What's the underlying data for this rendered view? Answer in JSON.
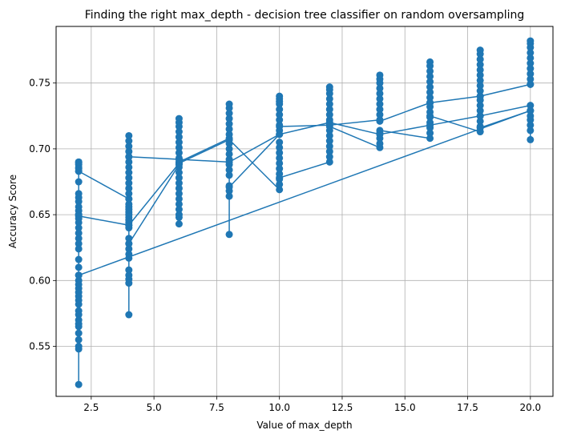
{
  "chart_data": {
    "type": "line",
    "title": "Finding the right max_depth - decision tree classifier on random oversampling",
    "xlabel": "Value of max_depth",
    "ylabel": "Accuracy Score",
    "xlim": [
      1.1,
      20.9
    ],
    "ylim": [
      0.512,
      0.793
    ],
    "xticks": [
      2.5,
      5.0,
      7.5,
      10.0,
      12.5,
      15.0,
      17.5,
      20.0
    ],
    "xtick_labels": [
      "2.5",
      "5.0",
      "7.5",
      "10.0",
      "12.5",
      "15.0",
      "17.5",
      "20.0"
    ],
    "yticks": [
      0.55,
      0.6,
      0.65,
      0.7,
      0.75
    ],
    "ytick_labels": [
      "0.55",
      "0.60",
      "0.65",
      "0.70",
      "0.75"
    ],
    "grid": true,
    "line_color": "#1f77b4",
    "series": [
      {
        "values": [
          {
            "x": 2,
            "y": 0.69
          },
          {
            "x": 2,
            "y": 0.689
          },
          {
            "x": 2,
            "y": 0.688
          },
          {
            "x": 2,
            "y": 0.686
          },
          {
            "x": 2,
            "y": 0.685
          },
          {
            "x": 2,
            "y": 0.683
          },
          {
            "x": 2,
            "y": 0.675
          },
          {
            "x": 2,
            "y": 0.666
          },
          {
            "x": 2,
            "y": 0.663
          },
          {
            "x": 2,
            "y": 0.66
          },
          {
            "x": 2,
            "y": 0.656
          },
          {
            "x": 2,
            "y": 0.653
          },
          {
            "x": 2,
            "y": 0.65
          },
          {
            "x": 2,
            "y": 0.647
          },
          {
            "x": 2,
            "y": 0.644
          },
          {
            "x": 2,
            "y": 0.64
          },
          {
            "x": 2,
            "y": 0.636
          },
          {
            "x": 2,
            "y": 0.632
          },
          {
            "x": 2,
            "y": 0.628
          },
          {
            "x": 2,
            "y": 0.624
          },
          {
            "x": 2,
            "y": 0.616
          },
          {
            "x": 2,
            "y": 0.61
          },
          {
            "x": 2,
            "y": 0.604
          },
          {
            "x": 2,
            "y": 0.6
          },
          {
            "x": 2,
            "y": 0.597
          },
          {
            "x": 2,
            "y": 0.594
          },
          {
            "x": 2,
            "y": 0.591
          },
          {
            "x": 2,
            "y": 0.588
          },
          {
            "x": 2,
            "y": 0.585
          },
          {
            "x": 2,
            "y": 0.582
          },
          {
            "x": 2,
            "y": 0.577
          },
          {
            "x": 2,
            "y": 0.574
          },
          {
            "x": 2,
            "y": 0.57
          },
          {
            "x": 2,
            "y": 0.567
          },
          {
            "x": 2,
            "y": 0.565
          },
          {
            "x": 2,
            "y": 0.56
          },
          {
            "x": 2,
            "y": 0.555
          },
          {
            "x": 2,
            "y": 0.55
          },
          {
            "x": 2,
            "y": 0.548
          },
          {
            "x": 2,
            "y": 0.521
          },
          {
            "x": 2,
            "y": 0.604
          },
          {
            "x": 20,
            "y": 0.729
          },
          {
            "x": 20,
            "y": 0.725
          },
          {
            "x": 20,
            "y": 0.722
          },
          {
            "x": 20,
            "y": 0.718
          },
          {
            "x": 20,
            "y": 0.714
          },
          {
            "x": 20,
            "y": 0.707
          },
          {
            "x": 20,
            "y": 0.729
          }
        ]
      },
      {
        "values": [
          {
            "x": 2,
            "y": 0.69
          },
          {
            "x": 2,
            "y": 0.683
          },
          {
            "x": 4,
            "y": 0.662
          },
          {
            "x": 4,
            "y": 0.656
          },
          {
            "x": 4,
            "y": 0.652
          },
          {
            "x": 4,
            "y": 0.648
          },
          {
            "x": 4,
            "y": 0.644
          },
          {
            "x": 4,
            "y": 0.64
          },
          {
            "x": 4,
            "y": 0.632
          },
          {
            "x": 4,
            "y": 0.628
          },
          {
            "x": 4,
            "y": 0.624
          },
          {
            "x": 4,
            "y": 0.62
          },
          {
            "x": 4,
            "y": 0.617
          },
          {
            "x": 4,
            "y": 0.608
          },
          {
            "x": 4,
            "y": 0.604
          },
          {
            "x": 4,
            "y": 0.601
          },
          {
            "x": 4,
            "y": 0.598
          },
          {
            "x": 4,
            "y": 0.574
          },
          {
            "x": 4,
            "y": 0.628
          },
          {
            "x": 6,
            "y": 0.688
          },
          {
            "x": 6,
            "y": 0.686
          },
          {
            "x": 6,
            "y": 0.682
          },
          {
            "x": 6,
            "y": 0.678
          },
          {
            "x": 6,
            "y": 0.674
          },
          {
            "x": 6,
            "y": 0.67
          },
          {
            "x": 6,
            "y": 0.666
          },
          {
            "x": 6,
            "y": 0.662
          },
          {
            "x": 6,
            "y": 0.658
          },
          {
            "x": 6,
            "y": 0.654
          },
          {
            "x": 6,
            "y": 0.65
          },
          {
            "x": 6,
            "y": 0.648
          },
          {
            "x": 6,
            "y": 0.643
          },
          {
            "x": 6,
            "y": 0.69
          },
          {
            "x": 8,
            "y": 0.708
          },
          {
            "x": 8,
            "y": 0.704
          },
          {
            "x": 8,
            "y": 0.7
          },
          {
            "x": 8,
            "y": 0.696
          },
          {
            "x": 8,
            "y": 0.692
          },
          {
            "x": 8,
            "y": 0.688
          },
          {
            "x": 8,
            "y": 0.684
          },
          {
            "x": 8,
            "y": 0.68
          },
          {
            "x": 8,
            "y": 0.672
          },
          {
            "x": 8,
            "y": 0.668
          },
          {
            "x": 8,
            "y": 0.664
          },
          {
            "x": 8,
            "y": 0.635
          },
          {
            "x": 8,
            "y": 0.671
          },
          {
            "x": 10,
            "y": 0.711
          },
          {
            "x": 10,
            "y": 0.714
          },
          {
            "x": 10,
            "y": 0.718
          },
          {
            "x": 10,
            "y": 0.722
          },
          {
            "x": 10,
            "y": 0.726
          },
          {
            "x": 10,
            "y": 0.73
          },
          {
            "x": 10,
            "y": 0.734
          },
          {
            "x": 10,
            "y": 0.736
          },
          {
            "x": 10,
            "y": 0.738
          },
          {
            "x": 10,
            "y": 0.74
          },
          {
            "x": 10,
            "y": 0.717
          },
          {
            "x": 12,
            "y": 0.718
          },
          {
            "x": 12,
            "y": 0.722
          },
          {
            "x": 12,
            "y": 0.726
          },
          {
            "x": 12,
            "y": 0.73
          },
          {
            "x": 12,
            "y": 0.734
          },
          {
            "x": 12,
            "y": 0.738
          },
          {
            "x": 12,
            "y": 0.742
          },
          {
            "x": 12,
            "y": 0.745
          },
          {
            "x": 12,
            "y": 0.747
          },
          {
            "x": 12,
            "y": 0.718
          },
          {
            "x": 14,
            "y": 0.722
          },
          {
            "x": 14,
            "y": 0.726
          },
          {
            "x": 14,
            "y": 0.73
          },
          {
            "x": 14,
            "y": 0.734
          },
          {
            "x": 14,
            "y": 0.738
          },
          {
            "x": 14,
            "y": 0.742
          },
          {
            "x": 14,
            "y": 0.746
          },
          {
            "x": 14,
            "y": 0.75
          },
          {
            "x": 14,
            "y": 0.753
          },
          {
            "x": 14,
            "y": 0.756
          },
          {
            "x": 14,
            "y": 0.721
          },
          {
            "x": 16,
            "y": 0.735
          },
          {
            "x": 16,
            "y": 0.739
          },
          {
            "x": 16,
            "y": 0.743
          },
          {
            "x": 16,
            "y": 0.747
          },
          {
            "x": 16,
            "y": 0.751
          },
          {
            "x": 16,
            "y": 0.755
          },
          {
            "x": 16,
            "y": 0.759
          },
          {
            "x": 16,
            "y": 0.763
          },
          {
            "x": 16,
            "y": 0.766
          },
          {
            "x": 16,
            "y": 0.735
          },
          {
            "x": 18,
            "y": 0.74
          },
          {
            "x": 18,
            "y": 0.744
          },
          {
            "x": 18,
            "y": 0.748
          },
          {
            "x": 18,
            "y": 0.752
          },
          {
            "x": 18,
            "y": 0.756
          },
          {
            "x": 18,
            "y": 0.76
          },
          {
            "x": 18,
            "y": 0.764
          },
          {
            "x": 18,
            "y": 0.768
          },
          {
            "x": 18,
            "y": 0.772
          },
          {
            "x": 18,
            "y": 0.775
          },
          {
            "x": 18,
            "y": 0.74
          },
          {
            "x": 20,
            "y": 0.749
          },
          {
            "x": 20,
            "y": 0.753
          },
          {
            "x": 20,
            "y": 0.757
          },
          {
            "x": 20,
            "y": 0.761
          },
          {
            "x": 20,
            "y": 0.765
          },
          {
            "x": 20,
            "y": 0.769
          },
          {
            "x": 20,
            "y": 0.773
          },
          {
            "x": 20,
            "y": 0.777
          },
          {
            "x": 20,
            "y": 0.78
          },
          {
            "x": 20,
            "y": 0.782
          },
          {
            "x": 20,
            "y": 0.749
          }
        ]
      },
      {
        "values": [
          {
            "x": 2,
            "y": 0.65
          },
          {
            "x": 2,
            "y": 0.649
          },
          {
            "x": 4,
            "y": 0.642
          },
          {
            "x": 4,
            "y": 0.646
          },
          {
            "x": 4,
            "y": 0.65
          },
          {
            "x": 4,
            "y": 0.654
          },
          {
            "x": 4,
            "y": 0.658
          },
          {
            "x": 4,
            "y": 0.662
          },
          {
            "x": 4,
            "y": 0.666
          },
          {
            "x": 4,
            "y": 0.67
          },
          {
            "x": 4,
            "y": 0.674
          },
          {
            "x": 4,
            "y": 0.678
          },
          {
            "x": 4,
            "y": 0.682
          },
          {
            "x": 4,
            "y": 0.686
          },
          {
            "x": 4,
            "y": 0.69
          },
          {
            "x": 4,
            "y": 0.694
          },
          {
            "x": 4,
            "y": 0.698
          },
          {
            "x": 4,
            "y": 0.702
          },
          {
            "x": 4,
            "y": 0.706
          },
          {
            "x": 4,
            "y": 0.71
          },
          {
            "x": 4,
            "y": 0.642
          },
          {
            "x": 6,
            "y": 0.689
          },
          {
            "x": 6,
            "y": 0.693
          },
          {
            "x": 6,
            "y": 0.697
          },
          {
            "x": 6,
            "y": 0.701
          },
          {
            "x": 6,
            "y": 0.705
          },
          {
            "x": 6,
            "y": 0.709
          },
          {
            "x": 6,
            "y": 0.713
          },
          {
            "x": 6,
            "y": 0.717
          },
          {
            "x": 6,
            "y": 0.72
          },
          {
            "x": 6,
            "y": 0.723
          },
          {
            "x": 6,
            "y": 0.689
          },
          {
            "x": 8,
            "y": 0.707
          },
          {
            "x": 8,
            "y": 0.711
          },
          {
            "x": 8,
            "y": 0.715
          },
          {
            "x": 8,
            "y": 0.719
          },
          {
            "x": 8,
            "y": 0.723
          },
          {
            "x": 8,
            "y": 0.727
          },
          {
            "x": 8,
            "y": 0.731
          },
          {
            "x": 8,
            "y": 0.734
          },
          {
            "x": 8,
            "y": 0.707
          },
          {
            "x": 10,
            "y": 0.669
          },
          {
            "x": 10,
            "y": 0.673
          },
          {
            "x": 10,
            "y": 0.677
          },
          {
            "x": 10,
            "y": 0.681
          },
          {
            "x": 10,
            "y": 0.685
          },
          {
            "x": 10,
            "y": 0.689
          },
          {
            "x": 10,
            "y": 0.693
          },
          {
            "x": 10,
            "y": 0.697
          },
          {
            "x": 10,
            "y": 0.701
          },
          {
            "x": 10,
            "y": 0.705
          },
          {
            "x": 10,
            "y": 0.678
          },
          {
            "x": 12,
            "y": 0.69
          },
          {
            "x": 12,
            "y": 0.694
          },
          {
            "x": 12,
            "y": 0.698
          },
          {
            "x": 12,
            "y": 0.702
          },
          {
            "x": 12,
            "y": 0.706
          },
          {
            "x": 12,
            "y": 0.71
          },
          {
            "x": 12,
            "y": 0.714
          },
          {
            "x": 12,
            "y": 0.717
          },
          {
            "x": 14,
            "y": 0.701
          },
          {
            "x": 14,
            "y": 0.704
          },
          {
            "x": 14,
            "y": 0.708
          },
          {
            "x": 14,
            "y": 0.712
          },
          {
            "x": 14,
            "y": 0.714
          },
          {
            "x": 16,
            "y": 0.708
          },
          {
            "x": 16,
            "y": 0.712
          },
          {
            "x": 16,
            "y": 0.716
          },
          {
            "x": 16,
            "y": 0.72
          },
          {
            "x": 16,
            "y": 0.724
          },
          {
            "x": 16,
            "y": 0.728
          },
          {
            "x": 16,
            "y": 0.732
          },
          {
            "x": 16,
            "y": 0.725
          },
          {
            "x": 18,
            "y": 0.713
          },
          {
            "x": 18,
            "y": 0.717
          },
          {
            "x": 18,
            "y": 0.721
          },
          {
            "x": 18,
            "y": 0.725
          },
          {
            "x": 18,
            "y": 0.729
          },
          {
            "x": 18,
            "y": 0.733
          },
          {
            "x": 18,
            "y": 0.737
          },
          {
            "x": 18,
            "y": 0.716
          },
          {
            "x": 20,
            "y": 0.729
          }
        ]
      },
      {
        "values": [
          {
            "x": 4,
            "y": 0.694
          },
          {
            "x": 6,
            "y": 0.692
          },
          {
            "x": 8,
            "y": 0.69
          },
          {
            "x": 10,
            "y": 0.711
          },
          {
            "x": 12,
            "y": 0.72
          },
          {
            "x": 14,
            "y": 0.711
          },
          {
            "x": 16,
            "y": 0.718
          },
          {
            "x": 18,
            "y": 0.725
          },
          {
            "x": 20,
            "y": 0.733
          }
        ]
      }
    ]
  }
}
